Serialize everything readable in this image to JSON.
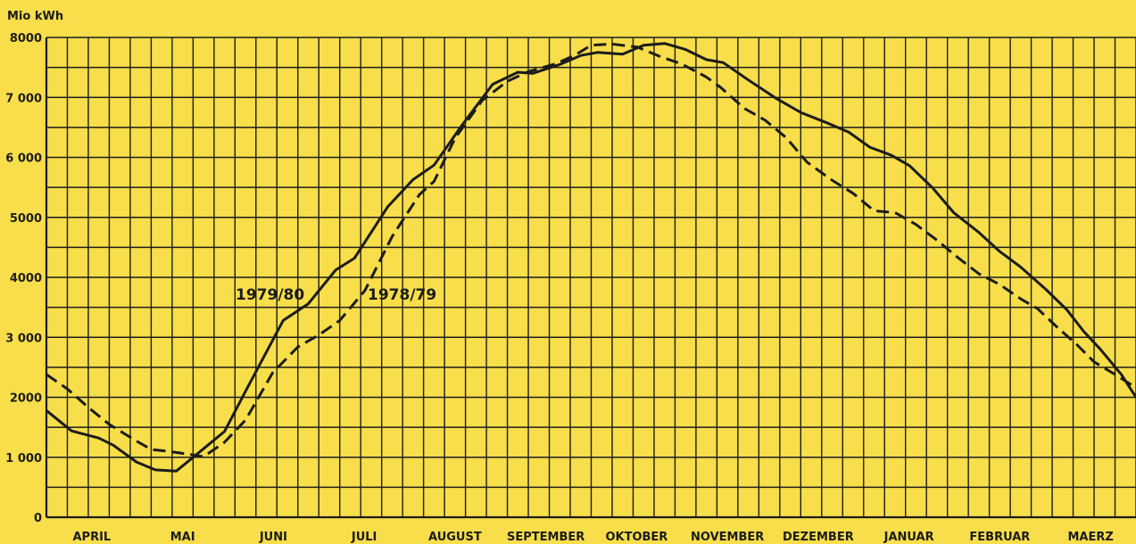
{
  "chart_data": {
    "type": "line",
    "ylabel": "Mio kWh",
    "ylim": [
      0,
      8000
    ],
    "yticks": [
      "0",
      "1 000",
      "2000",
      "3 000",
      "4000",
      "5000",
      "6 000",
      "7 000",
      "8000"
    ],
    "ytick_values": [
      0,
      1000,
      2000,
      3000,
      4000,
      5000,
      6000,
      7000,
      8000
    ],
    "xlim": [
      0,
      52
    ],
    "x_unit": "weeks from start of April",
    "months": [
      "APRIL",
      "MAI",
      "JUNI",
      "JULI",
      "AUGUST",
      "SEPTEMBER",
      "OKTOBER",
      "NOVEMBER",
      "DEZEMBER",
      "JANUAR",
      "FEBRUAR",
      "MAERZ"
    ],
    "grid": true,
    "colors": {
      "background": "#f7de4a",
      "ink": "#1c1c1c"
    },
    "series": [
      {
        "name": "1979/80",
        "style": "solid",
        "points": [
          [
            0,
            1780
          ],
          [
            1.2,
            1440
          ],
          [
            2.5,
            1320
          ],
          [
            3.2,
            1200
          ],
          [
            4.3,
            920
          ],
          [
            5.2,
            790
          ],
          [
            6.2,
            770
          ],
          [
            7,
            1000
          ],
          [
            8.5,
            1430
          ],
          [
            9.5,
            2100
          ],
          [
            11.3,
            3280
          ],
          [
            12.5,
            3560
          ],
          [
            13.8,
            4120
          ],
          [
            14.7,
            4320
          ],
          [
            16.3,
            5180
          ],
          [
            17.5,
            5630
          ],
          [
            18.5,
            5870
          ],
          [
            19.8,
            6520
          ],
          [
            21.3,
            7220
          ],
          [
            22.5,
            7420
          ],
          [
            23.2,
            7400
          ],
          [
            24.5,
            7550
          ],
          [
            25.5,
            7700
          ],
          [
            26.3,
            7750
          ],
          [
            27.5,
            7720
          ],
          [
            28.5,
            7870
          ],
          [
            29.5,
            7900
          ],
          [
            30.5,
            7800
          ],
          [
            31.5,
            7630
          ],
          [
            32.3,
            7580
          ],
          [
            33.5,
            7290
          ],
          [
            34.8,
            6990
          ],
          [
            36,
            6750
          ],
          [
            37.3,
            6570
          ],
          [
            38.3,
            6420
          ],
          [
            39.3,
            6170
          ],
          [
            40.3,
            6040
          ],
          [
            41.2,
            5860
          ],
          [
            42.3,
            5490
          ],
          [
            43.3,
            5080
          ],
          [
            44.5,
            4750
          ],
          [
            45.5,
            4430
          ],
          [
            46.5,
            4170
          ],
          [
            47.7,
            3800
          ],
          [
            48.7,
            3460
          ],
          [
            49.5,
            3100
          ],
          [
            50.3,
            2800
          ],
          [
            51.3,
            2380
          ],
          [
            52,
            2000
          ],
          [
            52.5,
            1850
          ]
        ]
      },
      {
        "name": "1978/79",
        "style": "dashed",
        "points": [
          [
            0,
            2380
          ],
          [
            1,
            2140
          ],
          [
            2,
            1830
          ],
          [
            3,
            1550
          ],
          [
            4.2,
            1290
          ],
          [
            5,
            1130
          ],
          [
            5.8,
            1100
          ],
          [
            6.8,
            1050
          ],
          [
            7.5,
            1010
          ],
          [
            8.5,
            1250
          ],
          [
            9.5,
            1620
          ],
          [
            10.8,
            2410
          ],
          [
            12,
            2840
          ],
          [
            13,
            3040
          ],
          [
            14,
            3280
          ],
          [
            15.2,
            3780
          ],
          [
            16.5,
            4680
          ],
          [
            17.8,
            5380
          ],
          [
            18.5,
            5600
          ],
          [
            19.5,
            6320
          ],
          [
            20.8,
            6950
          ],
          [
            22,
            7270
          ],
          [
            23,
            7430
          ],
          [
            24.3,
            7560
          ],
          [
            25.2,
            7700
          ],
          [
            26,
            7870
          ],
          [
            27,
            7890
          ],
          [
            28.2,
            7840
          ],
          [
            29.3,
            7680
          ],
          [
            30.3,
            7560
          ],
          [
            31.5,
            7340
          ],
          [
            32.2,
            7160
          ],
          [
            33.3,
            6820
          ],
          [
            34.3,
            6620
          ],
          [
            35.3,
            6330
          ],
          [
            36.3,
            5920
          ],
          [
            37.5,
            5620
          ],
          [
            38.5,
            5400
          ],
          [
            39.5,
            5110
          ],
          [
            40.5,
            5080
          ],
          [
            41.5,
            4880
          ],
          [
            42.5,
            4620
          ],
          [
            43.5,
            4330
          ],
          [
            44.5,
            4060
          ],
          [
            45.5,
            3880
          ],
          [
            46.5,
            3640
          ],
          [
            47.3,
            3480
          ],
          [
            48.2,
            3180
          ],
          [
            49.2,
            2870
          ],
          [
            50,
            2590
          ],
          [
            51,
            2380
          ],
          [
            52,
            2160
          ],
          [
            52.5,
            1980
          ]
        ]
      }
    ],
    "annotations": [
      {
        "text": "1979/80",
        "series": "1979/80"
      },
      {
        "text": "1978/79",
        "series": "1978/79"
      }
    ]
  }
}
